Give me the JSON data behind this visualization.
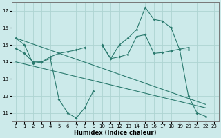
{
  "bg_color": "#cceaea",
  "line_color": "#2a7a6e",
  "grid_color": "#aed4d2",
  "xlabel": "Humidex (Indice chaleur)",
  "xlim": [
    -0.5,
    23.5
  ],
  "ylim": [
    10.5,
    17.5
  ],
  "yticks": [
    11,
    12,
    13,
    14,
    15,
    16,
    17
  ],
  "xticks": [
    0,
    1,
    2,
    3,
    4,
    5,
    6,
    7,
    8,
    9,
    10,
    11,
    12,
    13,
    14,
    15,
    16,
    17,
    18,
    19,
    20,
    21,
    22,
    23
  ],
  "line1": {
    "x": [
      0,
      1,
      2,
      3,
      4,
      5,
      6,
      7,
      8,
      9
    ],
    "y": [
      15.4,
      15.0,
      13.9,
      14.0,
      14.2,
      11.8,
      11.0,
      10.7,
      11.3,
      12.3
    ]
  },
  "line2": {
    "x": [
      10,
      11,
      12,
      13,
      14,
      15,
      16,
      17,
      18,
      19,
      20
    ],
    "y": [
      15.0,
      14.2,
      15.0,
      15.4,
      15.9,
      17.2,
      16.5,
      16.4,
      16.0,
      14.7,
      14.7
    ]
  },
  "line3": {
    "x": [
      1,
      2,
      3,
      4,
      5,
      6,
      7,
      8,
      9
    ],
    "y": [
      14.8,
      13.9,
      13.9,
      14.4,
      11.8,
      11.5,
      10.7,
      11.3,
      12.4
    ]
  },
  "line4": {
    "x": [
      19,
      20,
      21,
      22
    ],
    "y": [
      14.7,
      12.0,
      11.0,
      10.8
    ]
  },
  "trend1": {
    "x": [
      0,
      22
    ],
    "y": [
      15.4,
      11.5
    ]
  },
  "trend2": {
    "x": [
      0,
      22
    ],
    "y": [
      14.0,
      11.3
    ]
  },
  "seg_mid_left": {
    "x": [
      0,
      1,
      2,
      3,
      4,
      5,
      6,
      7,
      8
    ],
    "y": [
      14.8,
      14.5,
      14.0,
      14.0,
      14.3,
      14.5,
      14.6,
      14.7,
      14.85
    ]
  },
  "seg_mid_right": {
    "x": [
      10,
      11,
      12,
      13,
      14,
      15,
      16,
      17,
      18,
      19,
      20
    ],
    "y": [
      14.95,
      14.2,
      14.3,
      14.45,
      15.5,
      15.6,
      14.5,
      14.55,
      14.65,
      14.75,
      14.85
    ]
  }
}
